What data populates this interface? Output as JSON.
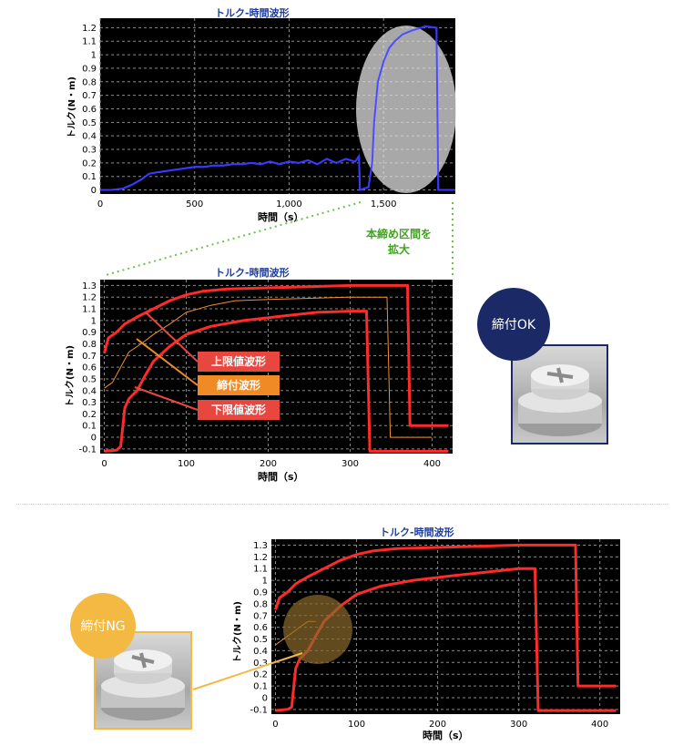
{
  "charts": [
    {
      "type": "line",
      "title": "トルク-時間波形",
      "ylabel": "トルク(N・m)",
      "xlabel": "時間（s）",
      "xlim": [
        0,
        1880
      ],
      "ylim": [
        -0.03,
        1.27
      ],
      "xticks": [
        0,
        500,
        1000,
        1500
      ],
      "xtick_labels": [
        "0",
        "500",
        "1,000",
        "1,500"
      ],
      "yticks": [
        0,
        0.1,
        0.2,
        0.3,
        0.4,
        0.5,
        0.6,
        0.7,
        0.8,
        0.9,
        1,
        1.1,
        1.2
      ],
      "ytick_labels": [
        "0",
        "0.1",
        "0.2",
        "0.3",
        "0.4",
        "0.5",
        "0.6",
        "0.7",
        "0.8",
        "0.9",
        "1",
        "1.1",
        "1.2"
      ],
      "series": [
        {
          "color": "#3a3aff",
          "width": 2,
          "points": [
            [
              0,
              0
            ],
            [
              60,
              0
            ],
            [
              120,
              0.01
            ],
            [
              170,
              0.04
            ],
            [
              220,
              0.08
            ],
            [
              260,
              0.12
            ],
            [
              300,
              0.13
            ],
            [
              350,
              0.14
            ],
            [
              400,
              0.15
            ],
            [
              450,
              0.16
            ],
            [
              500,
              0.17
            ],
            [
              550,
              0.17
            ],
            [
              600,
              0.18
            ],
            [
              650,
              0.18
            ],
            [
              700,
              0.19
            ],
            [
              750,
              0.19
            ],
            [
              800,
              0.2
            ],
            [
              850,
              0.19
            ],
            [
              900,
              0.21
            ],
            [
              950,
              0.19
            ],
            [
              1000,
              0.21
            ],
            [
              1050,
              0.2
            ],
            [
              1100,
              0.22
            ],
            [
              1150,
              0.19
            ],
            [
              1200,
              0.23
            ],
            [
              1250,
              0.2
            ],
            [
              1300,
              0.23
            ],
            [
              1350,
              0.21
            ],
            [
              1370,
              0.25
            ],
            [
              1375,
              0
            ],
            [
              1420,
              0.02
            ],
            [
              1440,
              0.2
            ],
            [
              1450,
              0.5
            ],
            [
              1470,
              0.8
            ],
            [
              1500,
              0.95
            ],
            [
              1530,
              1.05
            ],
            [
              1560,
              1.1
            ],
            [
              1600,
              1.15
            ],
            [
              1650,
              1.18
            ],
            [
              1700,
              1.2
            ],
            [
              1720,
              1.21
            ],
            [
              1780,
              1.2
            ],
            [
              1790,
              0
            ],
            [
              1880,
              0
            ]
          ]
        }
      ]
    },
    {
      "type": "line",
      "title": "トルク-時間波形",
      "ylabel": "トルク(N・m)",
      "xlabel": "時間（s）",
      "xlim": [
        -5,
        425
      ],
      "ylim": [
        -0.14,
        1.35
      ],
      "xticks": [
        0,
        100,
        200,
        300,
        400
      ],
      "xtick_labels": [
        "0",
        "100",
        "200",
        "300",
        "400"
      ],
      "yticks": [
        -0.1,
        0,
        0.1,
        0.2,
        0.3,
        0.4,
        0.5,
        0.6,
        0.7,
        0.8,
        0.9,
        1,
        1.1,
        1.2,
        1.3
      ],
      "ytick_labels": [
        "-0.1",
        "0",
        "0.1",
        "0.2",
        "0.3",
        "0.4",
        "0.5",
        "0.6",
        "0.7",
        "0.8",
        "0.9",
        "1",
        "1.1",
        "1.2",
        "1.3"
      ],
      "series": [
        {
          "name": "上限値波形",
          "color": "#ff2a2a",
          "width": 3,
          "points": [
            [
              0,
              0.72
            ],
            [
              5,
              0.85
            ],
            [
              15,
              0.9
            ],
            [
              25,
              0.97
            ],
            [
              40,
              1.03
            ],
            [
              60,
              1.1
            ],
            [
              80,
              1.17
            ],
            [
              100,
              1.22
            ],
            [
              120,
              1.25
            ],
            [
              150,
              1.27
            ],
            [
              200,
              1.28
            ],
            [
              250,
              1.29
            ],
            [
              300,
              1.3
            ],
            [
              370,
              1.3
            ],
            [
              373,
              0.1
            ],
            [
              420,
              0.1
            ]
          ]
        },
        {
          "name": "締付波形",
          "color": "#f3912b",
          "width": 1,
          "points": [
            [
              0,
              0.42
            ],
            [
              10,
              0.47
            ],
            [
              20,
              0.6
            ],
            [
              30,
              0.73
            ],
            [
              45,
              0.8
            ],
            [
              60,
              0.88
            ],
            [
              80,
              0.97
            ],
            [
              100,
              1.07
            ],
            [
              130,
              1.13
            ],
            [
              160,
              1.17
            ],
            [
              200,
              1.18
            ],
            [
              250,
              1.19
            ],
            [
              300,
              1.2
            ],
            [
              345,
              1.2
            ],
            [
              349,
              0.0
            ],
            [
              400,
              0.0
            ]
          ]
        },
        {
          "name": "下限値波形",
          "color": "#ff2a2a",
          "width": 3,
          "points": [
            [
              0,
              -0.12
            ],
            [
              15,
              -0.11
            ],
            [
              20,
              -0.08
            ],
            [
              25,
              0.25
            ],
            [
              30,
              0.33
            ],
            [
              40,
              0.4
            ],
            [
              50,
              0.53
            ],
            [
              60,
              0.65
            ],
            [
              80,
              0.78
            ],
            [
              100,
              0.88
            ],
            [
              130,
              0.95
            ],
            [
              170,
              1.0
            ],
            [
              220,
              1.04
            ],
            [
              260,
              1.07
            ],
            [
              300,
              1.08
            ],
            [
              320,
              1.08
            ],
            [
              324,
              -0.12
            ],
            [
              420,
              -0.12
            ]
          ]
        }
      ]
    },
    {
      "type": "line",
      "title": "トルク-時間波形",
      "ylabel": "トルク(N・m)",
      "xlabel": "時間（s）",
      "xlim": [
        -5,
        425
      ],
      "ylim": [
        -0.14,
        1.35
      ],
      "xticks": [
        0,
        100,
        200,
        300,
        400
      ],
      "xtick_labels": [
        "0",
        "100",
        "200",
        "300",
        "400"
      ],
      "yticks": [
        -0.1,
        0,
        0.1,
        0.2,
        0.3,
        0.4,
        0.5,
        0.6,
        0.7,
        0.8,
        0.9,
        1,
        1.1,
        1.2,
        1.3
      ],
      "ytick_labels": [
        "-0.1",
        "0",
        "0.1",
        "0.2",
        "0.3",
        "0.4",
        "0.5",
        "0.6",
        "0.7",
        "0.8",
        "0.9",
        "1",
        "1.1",
        "1.2",
        "1.3"
      ],
      "series": [
        {
          "color": "#ff2a2a",
          "width": 3,
          "points": [
            [
              0,
              0.75
            ],
            [
              5,
              0.85
            ],
            [
              15,
              0.9
            ],
            [
              25,
              0.97
            ],
            [
              40,
              1.03
            ],
            [
              60,
              1.1
            ],
            [
              80,
              1.17
            ],
            [
              100,
              1.22
            ],
            [
              120,
              1.25
            ],
            [
              150,
              1.27
            ],
            [
              200,
              1.28
            ],
            [
              250,
              1.29
            ],
            [
              300,
              1.3
            ],
            [
              370,
              1.3
            ],
            [
              373,
              0.1
            ],
            [
              420,
              0.1
            ]
          ]
        },
        {
          "color": "#f3912b",
          "width": 1,
          "points": [
            [
              0,
              0.45
            ],
            [
              10,
              0.5
            ],
            [
              20,
              0.55
            ],
            [
              30,
              0.6
            ],
            [
              40,
              0.65
            ],
            [
              50,
              0.65
            ]
          ]
        },
        {
          "color": "#ff2a2a",
          "width": 3,
          "points": [
            [
              0,
              -0.11
            ],
            [
              15,
              -0.1
            ],
            [
              20,
              -0.08
            ],
            [
              25,
              0.25
            ],
            [
              30,
              0.33
            ],
            [
              40,
              0.4
            ],
            [
              50,
              0.53
            ],
            [
              60,
              0.65
            ],
            [
              80,
              0.78
            ],
            [
              100,
              0.88
            ],
            [
              130,
              0.95
            ],
            [
              170,
              1.0
            ],
            [
              220,
              1.04
            ],
            [
              260,
              1.07
            ],
            [
              300,
              1.1
            ],
            [
              320,
              1.1
            ],
            [
              324,
              -0.11
            ],
            [
              420,
              -0.11
            ]
          ]
        }
      ]
    }
  ],
  "legend": {
    "upper": "上限値波形",
    "fasten": "締付波形",
    "lower": "下限値波形"
  },
  "zoom_note": {
    "line1": "本締め区間を",
    "line2": "拡大"
  },
  "badges": {
    "ok": "締付OK",
    "ng": "締付NG"
  },
  "colors": {
    "plot_bg": "#000000",
    "grid": "#8a8a8a",
    "zoom_highlight": "#e0e0e0",
    "zoom_line": "#6ac445",
    "ng_highlight": "#8a6a2a",
    "ok_badge": "#1b2a66",
    "ng_badge": "#f4b942"
  }
}
